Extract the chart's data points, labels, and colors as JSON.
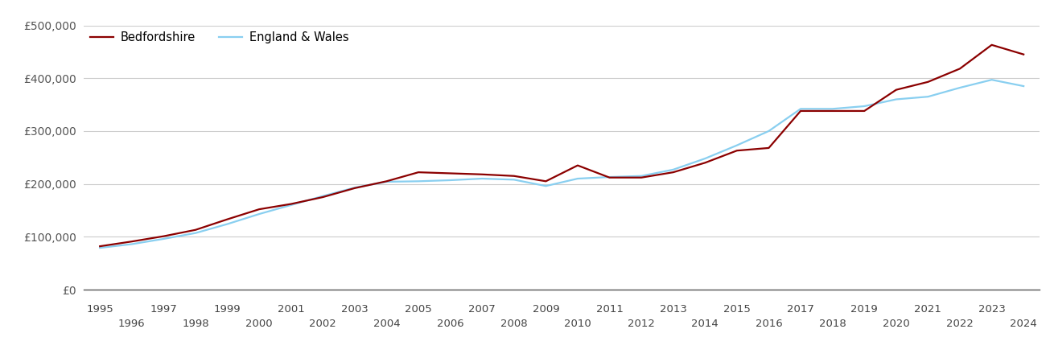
{
  "bedfordshire": {
    "years": [
      1995,
      1996,
      1997,
      1998,
      1999,
      2000,
      2001,
      2002,
      2003,
      2004,
      2005,
      2006,
      2007,
      2008,
      2009,
      2010,
      2011,
      2012,
      2013,
      2014,
      2015,
      2016,
      2017,
      2018,
      2019,
      2020,
      2021,
      2022,
      2023,
      2024
    ],
    "values": [
      82000,
      91000,
      101000,
      113000,
      133000,
      152000,
      162000,
      175000,
      192000,
      205000,
      222000,
      220000,
      218000,
      215000,
      205000,
      235000,
      212000,
      212000,
      222000,
      240000,
      263000,
      268000,
      338000,
      338000,
      338000,
      378000,
      393000,
      418000,
      463000,
      445000
    ]
  },
  "england_wales": {
    "years": [
      1995,
      1996,
      1997,
      1998,
      1999,
      2000,
      2001,
      2002,
      2003,
      2004,
      2005,
      2006,
      2007,
      2008,
      2009,
      2010,
      2011,
      2012,
      2013,
      2014,
      2015,
      2016,
      2017,
      2018,
      2019,
      2020,
      2021,
      2022,
      2023,
      2024
    ],
    "values": [
      79000,
      86000,
      96000,
      107000,
      124000,
      143000,
      160000,
      177000,
      193000,
      204000,
      205000,
      207000,
      210000,
      208000,
      196000,
      210000,
      213000,
      215000,
      227000,
      248000,
      273000,
      300000,
      342000,
      342000,
      347000,
      360000,
      365000,
      382000,
      397000,
      385000
    ]
  },
  "bedfordshire_color": "#8B0000",
  "england_wales_color": "#89CFF0",
  "bedfordshire_label": "Bedfordshire",
  "england_wales_label": "England & Wales",
  "ylim": [
    0,
    500000
  ],
  "yticks": [
    0,
    100000,
    200000,
    300000,
    400000,
    500000
  ],
  "ytick_labels": [
    "£0",
    "£100,000",
    "£200,000",
    "£300,000",
    "£400,000",
    "£500,000"
  ],
  "background_color": "#ffffff",
  "grid_color": "#cccccc",
  "line_width": 1.6,
  "odd_years": [
    1995,
    1997,
    1999,
    2001,
    2003,
    2005,
    2007,
    2009,
    2011,
    2013,
    2015,
    2017,
    2019,
    2021,
    2023
  ],
  "even_years": [
    1996,
    1998,
    2000,
    2002,
    2004,
    2006,
    2008,
    2010,
    2012,
    2014,
    2016,
    2018,
    2020,
    2022,
    2024
  ]
}
